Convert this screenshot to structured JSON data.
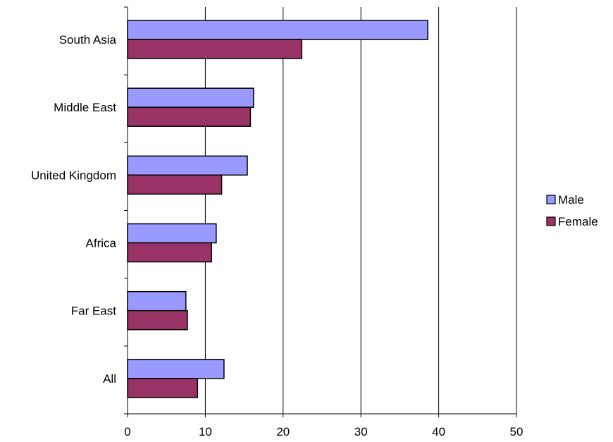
{
  "chart_data": {
    "type": "bar",
    "orientation": "horizontal",
    "title": "",
    "xlabel": "",
    "ylabel": "",
    "categories": [
      "South Asia",
      "Middle East",
      "United Kingdom",
      "Africa",
      "Far East",
      "All"
    ],
    "series": [
      {
        "name": "Male",
        "values": [
          38.6,
          16.2,
          15.4,
          11.4,
          7.5,
          12.4
        ],
        "color": "#9999ff"
      },
      {
        "name": "Female",
        "values": [
          22.4,
          15.8,
          12.1,
          10.8,
          7.7,
          9.0
        ],
        "color": "#993366"
      }
    ],
    "xlim": [
      0,
      50
    ],
    "xticks": [
      0,
      10,
      20,
      30,
      40,
      50
    ],
    "grid": "vertical",
    "legend_position": "right"
  }
}
